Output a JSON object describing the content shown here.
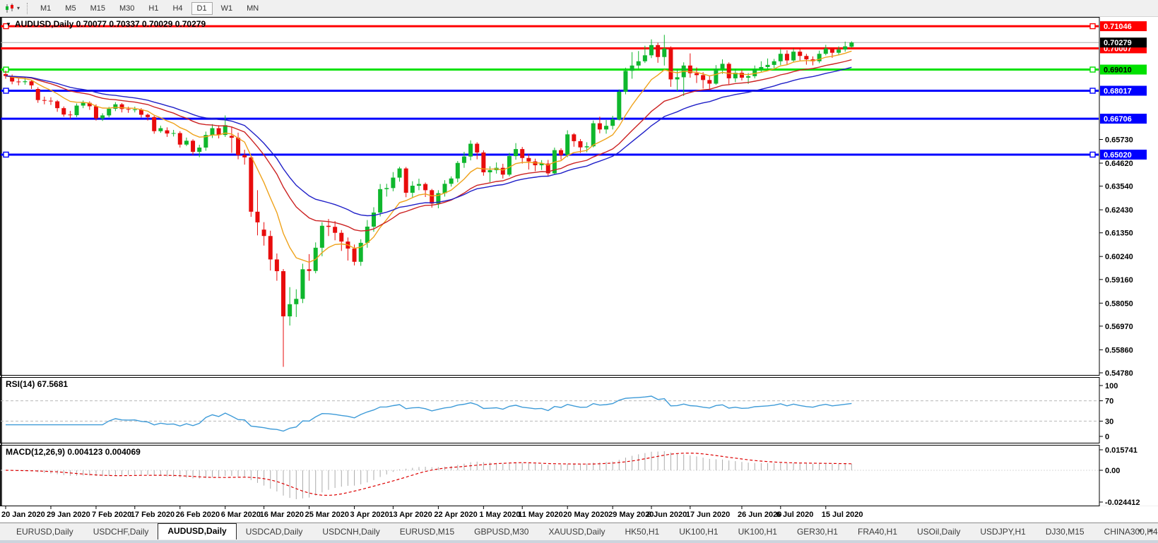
{
  "icons": {
    "dropdown": "▼",
    "caret": "▾",
    "tab_left": "◄",
    "tab_right": "►"
  },
  "toolbar": {
    "timeframes": [
      "M1",
      "M5",
      "M15",
      "M30",
      "H1",
      "H4",
      "D1",
      "W1",
      "MN"
    ],
    "active": "D1"
  },
  "chart": {
    "title_line": "AUDUSD,Daily  0.70077 0.70337 0.70029 0.70279"
  },
  "chart_data": {
    "type": "candlestick",
    "symbol": "AUDUSD",
    "timeframe": "Daily",
    "last_bar": {
      "open": 0.70077,
      "high": 0.70337,
      "low": 0.70029,
      "close": 0.70279
    },
    "current_price": {
      "value": 0.70279,
      "label": "0.70279",
      "line_color": "#ADADAD",
      "box_color": "#000000"
    },
    "colors": {
      "up": "#0FB72D",
      "down": "#E80C0C",
      "ma_fast": "#EFA21A",
      "ma_mid": "#CC2222",
      "ma_slow": "#2020C8",
      "rsi": "#3E9BD8",
      "macd_hist": "#ABABAB",
      "macd_signal": "#DD0000"
    },
    "levels": [
      {
        "price": 0.71046,
        "label": "0.71046",
        "color": "#FF0000",
        "text": "#FFFFFF",
        "width": 3,
        "selected": true
      },
      {
        "price": 0.70007,
        "label": "0.70007",
        "color": "#FF0000",
        "text": "#FFFFFF",
        "width": 3,
        "selected": false
      },
      {
        "price": 0.6901,
        "label": "0.69010",
        "color": "#00E100",
        "text": "#000000",
        "width": 3,
        "selected": true
      },
      {
        "price": 0.68017,
        "label": "0.68017",
        "color": "#0000FF",
        "text": "#FFFFFF",
        "width": 3,
        "selected": true
      },
      {
        "price": 0.66706,
        "label": "0.66706",
        "color": "#0000FF",
        "text": "#FFFFFF",
        "width": 3,
        "selected": false
      },
      {
        "price": 0.6502,
        "label": "0.65020",
        "color": "#0000FF",
        "text": "#FFFFFF",
        "width": 3,
        "selected": true
      }
    ],
    "price_ticks": [
      "0.65730",
      "0.64620",
      "0.63540",
      "0.62430",
      "0.61350",
      "0.60240",
      "0.59160",
      "0.58050",
      "0.56970",
      "0.55860",
      "0.54780"
    ],
    "moving_averages": [
      {
        "type": "ema",
        "period": 9,
        "color_key": "ma_fast"
      },
      {
        "type": "ema",
        "period": 21,
        "color_key": "ma_mid"
      },
      {
        "type": "ema",
        "period": 30,
        "color_key": "ma_slow"
      }
    ],
    "rsi": {
      "label": "RSI(14) 67.5681",
      "period": 14,
      "value": 67.5681,
      "axis_labels": [
        100,
        70,
        30,
        0
      ],
      "dashed_levels": [
        70,
        30
      ]
    },
    "macd": {
      "label": "MACD(12,26,9) 0.004123 0.004069",
      "fast": 12,
      "slow": 26,
      "signal": 9,
      "main_value": 0.004123,
      "signal_value": 0.004069,
      "axis_labels": [
        "0.015741",
        "0.00",
        "-0.024412"
      ],
      "axis_values": [
        0.015741,
        0,
        -0.024412
      ]
    },
    "x_labels": [
      [
        "20 Jan 2020",
        0
      ],
      [
        "29 Jan 2020",
        7
      ],
      [
        "7 Feb 2020",
        14
      ],
      [
        "17 Feb 2020",
        20
      ],
      [
        "26 Feb 2020",
        27
      ],
      [
        "6 Mar 2020",
        34
      ],
      [
        "16 Mar 2020",
        40
      ],
      [
        "25 Mar 2020",
        47
      ],
      [
        "3 Apr 2020",
        54
      ],
      [
        "13 Apr 2020",
        60
      ],
      [
        "22 Apr 2020",
        67
      ],
      [
        "1 May 2020",
        74
      ],
      [
        "11 May 2020",
        80
      ],
      [
        "20 May 2020",
        87
      ],
      [
        "29 May 2020",
        94
      ],
      [
        "8 Jun 2020",
        100
      ],
      [
        "17 Jun 2020",
        106
      ],
      [
        "26 Jun 2020",
        114
      ],
      [
        "6 Jul 2020",
        120
      ],
      [
        "15 Jul 2020",
        127
      ]
    ],
    "candles": [
      [
        0.688,
        0.6896,
        0.6858,
        0.6871
      ],
      [
        0.6871,
        0.6878,
        0.6832,
        0.6845
      ],
      [
        0.6845,
        0.686,
        0.6827,
        0.6842
      ],
      [
        0.6842,
        0.6866,
        0.683,
        0.6846
      ],
      [
        0.6846,
        0.6852,
        0.681,
        0.6827
      ],
      [
        0.681,
        0.6818,
        0.6745,
        0.6758
      ],
      [
        0.6758,
        0.6774,
        0.6738,
        0.6755
      ],
      [
        0.6755,
        0.6771,
        0.6735,
        0.6752
      ],
      [
        0.6752,
        0.6758,
        0.6703,
        0.672
      ],
      [
        0.672,
        0.6728,
        0.668,
        0.669
      ],
      [
        0.669,
        0.6707,
        0.667,
        0.6687
      ],
      [
        0.6687,
        0.6742,
        0.6678,
        0.6732
      ],
      [
        0.6732,
        0.6756,
        0.672,
        0.6745
      ],
      [
        0.6745,
        0.6752,
        0.6712,
        0.6729
      ],
      [
        0.6729,
        0.6738,
        0.6662,
        0.6672
      ],
      [
        0.6672,
        0.6696,
        0.666,
        0.6686
      ],
      [
        0.6686,
        0.6726,
        0.6677,
        0.6717
      ],
      [
        0.6717,
        0.6748,
        0.6706,
        0.6738
      ],
      [
        0.6738,
        0.6744,
        0.67,
        0.6716
      ],
      [
        0.6716,
        0.6727,
        0.6698,
        0.6713
      ],
      [
        0.6713,
        0.6727,
        0.67,
        0.6714
      ],
      [
        0.6714,
        0.672,
        0.6676,
        0.6689
      ],
      [
        0.6689,
        0.6695,
        0.6662,
        0.6678
      ],
      [
        0.6678,
        0.6684,
        0.66,
        0.6612
      ],
      [
        0.6612,
        0.6638,
        0.6604,
        0.6626
      ],
      [
        0.6616,
        0.663,
        0.6585,
        0.6601
      ],
      [
        0.6601,
        0.6618,
        0.6587,
        0.6603
      ],
      [
        0.6603,
        0.6612,
        0.6535,
        0.6549
      ],
      [
        0.6549,
        0.6582,
        0.6542,
        0.6567
      ],
      [
        0.6567,
        0.6574,
        0.65,
        0.6515
      ],
      [
        0.6515,
        0.6548,
        0.649,
        0.6535
      ],
      [
        0.6535,
        0.661,
        0.652,
        0.6594
      ],
      [
        0.6594,
        0.6645,
        0.658,
        0.6626
      ],
      [
        0.6626,
        0.664,
        0.6578,
        0.6594
      ],
      [
        0.6594,
        0.6686,
        0.6585,
        0.664
      ],
      [
        0.659,
        0.6632,
        0.651,
        0.6581
      ],
      [
        0.6581,
        0.6605,
        0.648,
        0.65
      ],
      [
        0.65,
        0.6525,
        0.6455,
        0.6489
      ],
      [
        0.6489,
        0.6495,
        0.621,
        0.6234
      ],
      [
        0.6234,
        0.6335,
        0.6123,
        0.6184
      ],
      [
        0.615,
        0.6185,
        0.6075,
        0.612
      ],
      [
        0.612,
        0.6145,
        0.5958,
        0.601
      ],
      [
        0.601,
        0.6038,
        0.591,
        0.5955
      ],
      [
        0.5955,
        0.5965,
        0.5506,
        0.5743
      ],
      [
        0.5743,
        0.588,
        0.57,
        0.58
      ],
      [
        0.58,
        0.587,
        0.574,
        0.5825
      ],
      [
        0.5825,
        0.599,
        0.5805,
        0.5964
      ],
      [
        0.5964,
        0.6035,
        0.591,
        0.5956
      ],
      [
        0.5956,
        0.609,
        0.5945,
        0.6065
      ],
      [
        0.6065,
        0.6185,
        0.6025,
        0.6168
      ],
      [
        0.6168,
        0.62,
        0.612,
        0.6163
      ],
      [
        0.6163,
        0.619,
        0.61,
        0.6135
      ],
      [
        0.6135,
        0.6148,
        0.605,
        0.6094
      ],
      [
        0.6094,
        0.6113,
        0.6005,
        0.6061
      ],
      [
        0.6061,
        0.608,
        0.5982,
        0.5999
      ],
      [
        0.5999,
        0.6105,
        0.598,
        0.6088
      ],
      [
        0.6088,
        0.6195,
        0.6065,
        0.6164
      ],
      [
        0.6164,
        0.6255,
        0.614,
        0.623
      ],
      [
        0.623,
        0.6364,
        0.6212,
        0.634
      ],
      [
        0.634,
        0.6365,
        0.6305,
        0.6345
      ],
      [
        0.6345,
        0.642,
        0.633,
        0.6394
      ],
      [
        0.6394,
        0.6445,
        0.6375,
        0.6437
      ],
      [
        0.6437,
        0.6444,
        0.6302,
        0.6323
      ],
      [
        0.6323,
        0.6377,
        0.63,
        0.6356
      ],
      [
        0.6356,
        0.6389,
        0.6335,
        0.6364
      ],
      [
        0.6364,
        0.6371,
        0.6303,
        0.6335
      ],
      [
        0.6335,
        0.6341,
        0.6253,
        0.6272
      ],
      [
        0.6272,
        0.6335,
        0.625,
        0.6321
      ],
      [
        0.6321,
        0.6382,
        0.6305,
        0.6365
      ],
      [
        0.6365,
        0.64,
        0.6352,
        0.639
      ],
      [
        0.639,
        0.6472,
        0.6372,
        0.6463
      ],
      [
        0.6463,
        0.6515,
        0.644,
        0.6493
      ],
      [
        0.6493,
        0.6569,
        0.6475,
        0.6553
      ],
      [
        0.6553,
        0.656,
        0.648,
        0.6512
      ],
      [
        0.6512,
        0.6522,
        0.6403,
        0.6419
      ],
      [
        0.6419,
        0.6447,
        0.6373,
        0.6429
      ],
      [
        0.6429,
        0.6465,
        0.6413,
        0.644
      ],
      [
        0.644,
        0.6459,
        0.639,
        0.6408
      ],
      [
        0.6408,
        0.651,
        0.64,
        0.6495
      ],
      [
        0.6495,
        0.6556,
        0.6478,
        0.6528
      ],
      [
        0.6528,
        0.6538,
        0.646,
        0.6486
      ],
      [
        0.6486,
        0.6505,
        0.6432,
        0.647
      ],
      [
        0.647,
        0.6483,
        0.6424,
        0.6452
      ],
      [
        0.6452,
        0.6476,
        0.643,
        0.646
      ],
      [
        0.646,
        0.6477,
        0.6403,
        0.6414
      ],
      [
        0.6414,
        0.6535,
        0.641,
        0.6523
      ],
      [
        0.6523,
        0.6532,
        0.6478,
        0.65
      ],
      [
        0.65,
        0.6616,
        0.649,
        0.6597
      ],
      [
        0.6597,
        0.6603,
        0.6539,
        0.6565
      ],
      [
        0.6565,
        0.6575,
        0.651,
        0.6536
      ],
      [
        0.6536,
        0.656,
        0.6513,
        0.6541
      ],
      [
        0.6541,
        0.6662,
        0.6536,
        0.6649
      ],
      [
        0.6649,
        0.668,
        0.6602,
        0.662
      ],
      [
        0.662,
        0.6664,
        0.66,
        0.6637
      ],
      [
        0.6637,
        0.6684,
        0.662,
        0.6667
      ],
      [
        0.6667,
        0.6808,
        0.6662,
        0.6797
      ],
      [
        0.6797,
        0.691,
        0.6785,
        0.6895
      ],
      [
        0.6895,
        0.6983,
        0.6858,
        0.692
      ],
      [
        0.692,
        0.6988,
        0.6905,
        0.694
      ],
      [
        0.694,
        0.7013,
        0.6932,
        0.6968
      ],
      [
        0.6968,
        0.7043,
        0.6955,
        0.7016
      ],
      [
        0.7016,
        0.7027,
        0.6933,
        0.696
      ],
      [
        0.696,
        0.7064,
        0.692,
        0.7
      ],
      [
        0.7,
        0.701,
        0.682,
        0.6855
      ],
      [
        0.6855,
        0.6905,
        0.68,
        0.6865
      ],
      [
        0.6865,
        0.6935,
        0.6777,
        0.692
      ],
      [
        0.692,
        0.6977,
        0.6863,
        0.6884
      ],
      [
        0.6884,
        0.6911,
        0.6838,
        0.6875
      ],
      [
        0.6875,
        0.6889,
        0.6812,
        0.6852
      ],
      [
        0.6852,
        0.6871,
        0.6804,
        0.6835
      ],
      [
        0.6835,
        0.6922,
        0.683,
        0.6905
      ],
      [
        0.6905,
        0.6949,
        0.6881,
        0.6928
      ],
      [
        0.6928,
        0.6935,
        0.6832,
        0.686
      ],
      [
        0.686,
        0.6905,
        0.6842,
        0.6886
      ],
      [
        0.6886,
        0.6899,
        0.685,
        0.6863
      ],
      [
        0.6863,
        0.6885,
        0.6834,
        0.687
      ],
      [
        0.687,
        0.692,
        0.686,
        0.6903
      ],
      [
        0.6903,
        0.694,
        0.689,
        0.6913
      ],
      [
        0.6913,
        0.6953,
        0.6903,
        0.6923
      ],
      [
        0.6923,
        0.6951,
        0.6901,
        0.694
      ],
      [
        0.694,
        0.6998,
        0.6922,
        0.6975
      ],
      [
        0.6975,
        0.6992,
        0.6924,
        0.6944
      ],
      [
        0.6944,
        0.7,
        0.6938,
        0.6985
      ],
      [
        0.6985,
        0.7002,
        0.6944,
        0.6965
      ],
      [
        0.6965,
        0.6975,
        0.6924,
        0.6949
      ],
      [
        0.6949,
        0.6963,
        0.6921,
        0.694
      ],
      [
        0.694,
        0.699,
        0.6931,
        0.6975
      ],
      [
        0.6975,
        0.7017,
        0.6968,
        0.7
      ],
      [
        0.7,
        0.7005,
        0.6956,
        0.698
      ],
      [
        0.698,
        0.701,
        0.6968,
        0.6995
      ],
      [
        0.6995,
        0.7032,
        0.6985,
        0.701
      ],
      [
        0.70077,
        0.70337,
        0.70029,
        0.70279
      ]
    ]
  },
  "tabs": {
    "items": [
      "EURUSD,Daily",
      "USDCHF,Daily",
      "AUDUSD,Daily",
      "USDCAD,Daily",
      "USDCNH,Daily",
      "EURUSD,M15",
      "GBPUSD,M30",
      "XAUUSD,Daily",
      "HK50,H1",
      "UK100,H1",
      "UK100,H1",
      "GER30,H1",
      "FRA40,H1",
      "USOil,Daily",
      "USDJPY,H1",
      "DJ30,M15",
      "CHINA300,H4"
    ],
    "active_index": 2
  }
}
